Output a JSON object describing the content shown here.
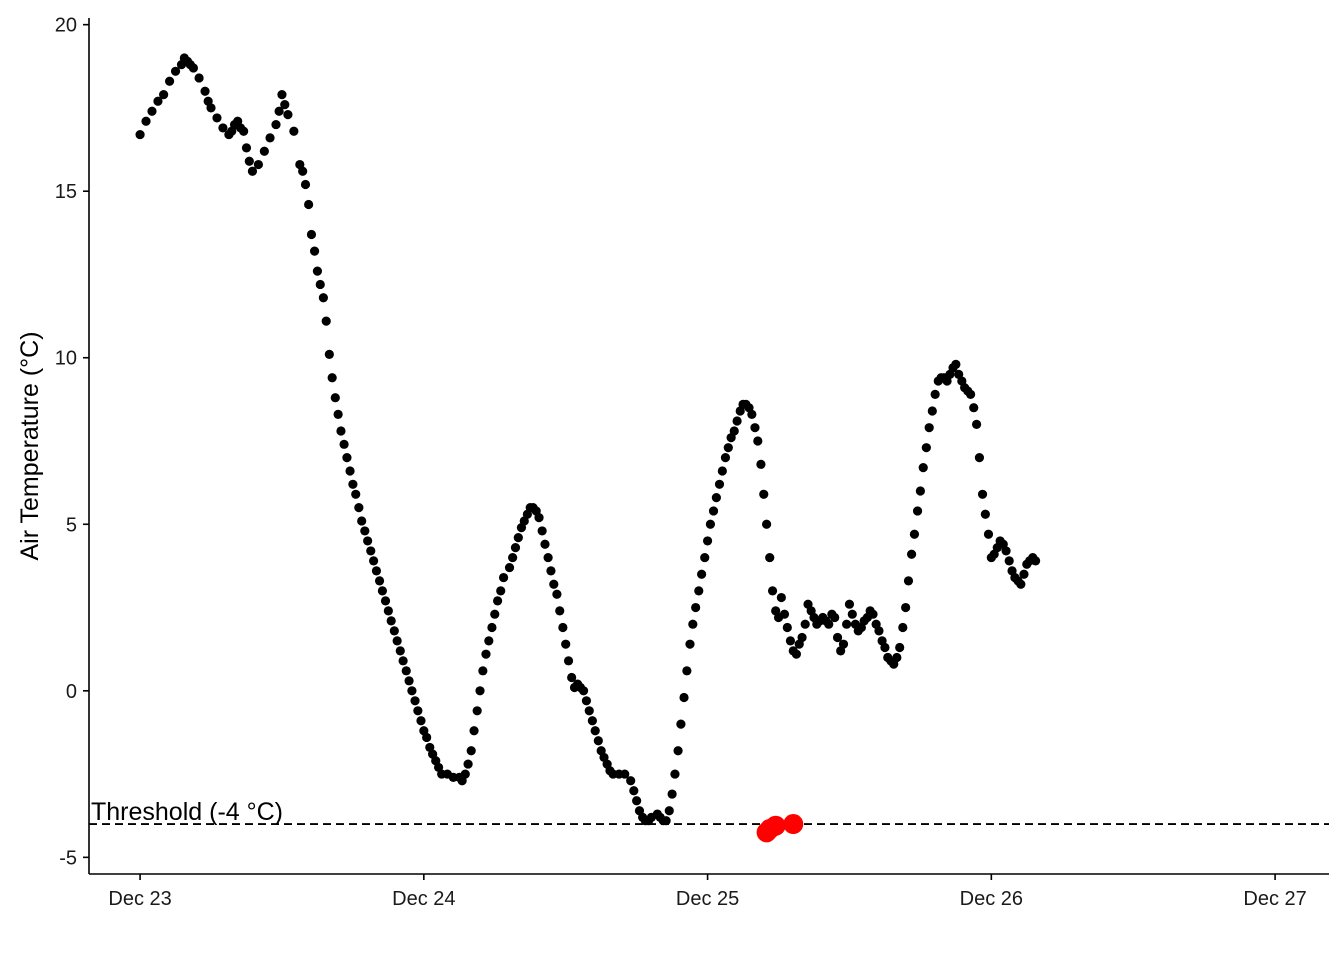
{
  "chart_data": {
    "type": "scatter",
    "title": "",
    "xlabel": "",
    "ylabel": "Air Temperature (°C)",
    "x_unit": "days since Dec 23 00:00",
    "xlim": [
      -0.18,
      4.19
    ],
    "ylim": [
      -5.5,
      20.2
    ],
    "x_ticks": [
      {
        "value": 0,
        "label": "Dec 23"
      },
      {
        "value": 1,
        "label": "Dec 24"
      },
      {
        "value": 2,
        "label": "Dec 25"
      },
      {
        "value": 3,
        "label": "Dec 26"
      },
      {
        "value": 4,
        "label": "Dec 27"
      }
    ],
    "y_ticks": [
      {
        "value": -5,
        "label": "-5"
      },
      {
        "value": 0,
        "label": "0"
      },
      {
        "value": 5,
        "label": "5"
      },
      {
        "value": 10,
        "label": "10"
      },
      {
        "value": 15,
        "label": "15"
      },
      {
        "value": 20,
        "label": "20"
      }
    ],
    "grid": false,
    "threshold": {
      "value": -4,
      "label": "Threshold (-4 °C)",
      "line_style": "dashed"
    },
    "colors": {
      "points": "#000000",
      "below_threshold": "#ff0000",
      "threshold_line": "#000000"
    },
    "series": [
      {
        "values": [
          [
            0.0,
            16.7
          ],
          [
            0.021,
            17.1
          ],
          [
            0.042,
            17.4
          ],
          [
            0.063,
            17.7
          ],
          [
            0.083,
            17.9
          ],
          [
            0.104,
            18.3
          ],
          [
            0.125,
            18.6
          ],
          [
            0.146,
            18.8
          ],
          [
            0.156,
            19.0
          ],
          [
            0.167,
            18.9
          ],
          [
            0.177,
            18.8
          ],
          [
            0.188,
            18.7
          ],
          [
            0.208,
            18.4
          ],
          [
            0.229,
            18.0
          ],
          [
            0.24,
            17.7
          ],
          [
            0.25,
            17.5
          ],
          [
            0.271,
            17.2
          ],
          [
            0.292,
            16.9
          ],
          [
            0.313,
            16.7
          ],
          [
            0.323,
            16.8
          ],
          [
            0.333,
            17.0
          ],
          [
            0.344,
            17.1
          ],
          [
            0.354,
            16.9
          ],
          [
            0.365,
            16.8
          ],
          [
            0.375,
            16.3
          ],
          [
            0.385,
            15.9
          ],
          [
            0.396,
            15.6
          ],
          [
            0.417,
            15.8
          ],
          [
            0.438,
            16.2
          ],
          [
            0.458,
            16.6
          ],
          [
            0.479,
            17.0
          ],
          [
            0.49,
            17.4
          ],
          [
            0.5,
            17.9
          ],
          [
            0.51,
            17.6
          ],
          [
            0.521,
            17.3
          ],
          [
            0.542,
            16.8
          ],
          [
            0.563,
            15.8
          ],
          [
            0.573,
            15.6
          ],
          [
            0.583,
            15.2
          ],
          [
            0.594,
            14.6
          ],
          [
            0.604,
            13.7
          ],
          [
            0.615,
            13.2
          ],
          [
            0.625,
            12.6
          ],
          [
            0.635,
            12.2
          ],
          [
            0.646,
            11.8
          ],
          [
            0.656,
            11.1
          ],
          [
            0.667,
            10.1
          ],
          [
            0.677,
            9.4
          ],
          [
            0.688,
            8.8
          ],
          [
            0.698,
            8.3
          ],
          [
            0.708,
            7.8
          ],
          [
            0.719,
            7.4
          ],
          [
            0.729,
            7.0
          ],
          [
            0.74,
            6.6
          ],
          [
            0.75,
            6.2
          ],
          [
            0.76,
            5.9
          ],
          [
            0.771,
            5.5
          ],
          [
            0.781,
            5.1
          ],
          [
            0.792,
            4.8
          ],
          [
            0.802,
            4.5
          ],
          [
            0.813,
            4.2
          ],
          [
            0.823,
            3.9
          ],
          [
            0.833,
            3.6
          ],
          [
            0.844,
            3.3
          ],
          [
            0.854,
            3.0
          ],
          [
            0.865,
            2.7
          ],
          [
            0.875,
            2.4
          ],
          [
            0.885,
            2.1
          ],
          [
            0.896,
            1.8
          ],
          [
            0.906,
            1.5
          ],
          [
            0.917,
            1.2
          ],
          [
            0.927,
            0.9
          ],
          [
            0.938,
            0.6
          ],
          [
            0.948,
            0.3
          ],
          [
            0.958,
            0.0
          ],
          [
            0.969,
            -0.3
          ],
          [
            0.979,
            -0.6
          ],
          [
            0.99,
            -0.9
          ],
          [
            1.0,
            -1.2
          ],
          [
            1.01,
            -1.4
          ],
          [
            1.021,
            -1.7
          ],
          [
            1.031,
            -1.9
          ],
          [
            1.042,
            -2.1
          ],
          [
            1.052,
            -2.3
          ],
          [
            1.063,
            -2.5
          ],
          [
            1.083,
            -2.5
          ],
          [
            1.104,
            -2.6
          ],
          [
            1.125,
            -2.6
          ],
          [
            1.135,
            -2.7
          ],
          [
            1.146,
            -2.5
          ],
          [
            1.156,
            -2.2
          ],
          [
            1.167,
            -1.8
          ],
          [
            1.177,
            -1.2
          ],
          [
            1.188,
            -0.6
          ],
          [
            1.198,
            0.0
          ],
          [
            1.208,
            0.6
          ],
          [
            1.219,
            1.1
          ],
          [
            1.229,
            1.5
          ],
          [
            1.24,
            1.9
          ],
          [
            1.25,
            2.3
          ],
          [
            1.26,
            2.7
          ],
          [
            1.271,
            3.0
          ],
          [
            1.281,
            3.4
          ],
          [
            1.302,
            3.7
          ],
          [
            1.313,
            4.0
          ],
          [
            1.323,
            4.3
          ],
          [
            1.333,
            4.6
          ],
          [
            1.344,
            4.9
          ],
          [
            1.354,
            5.1
          ],
          [
            1.365,
            5.3
          ],
          [
            1.375,
            5.5
          ],
          [
            1.385,
            5.5
          ],
          [
            1.396,
            5.4
          ],
          [
            1.406,
            5.2
          ],
          [
            1.417,
            4.8
          ],
          [
            1.427,
            4.4
          ],
          [
            1.438,
            4.0
          ],
          [
            1.448,
            3.6
          ],
          [
            1.458,
            3.2
          ],
          [
            1.469,
            2.9
          ],
          [
            1.479,
            2.4
          ],
          [
            1.49,
            1.9
          ],
          [
            1.5,
            1.4
          ],
          [
            1.51,
            0.9
          ],
          [
            1.521,
            0.4
          ],
          [
            1.531,
            0.1
          ],
          [
            1.542,
            0.2
          ],
          [
            1.552,
            0.1
          ],
          [
            1.563,
            0.0
          ],
          [
            1.573,
            -0.3
          ],
          [
            1.583,
            -0.6
          ],
          [
            1.594,
            -0.9
          ],
          [
            1.604,
            -1.2
          ],
          [
            1.615,
            -1.5
          ],
          [
            1.625,
            -1.8
          ],
          [
            1.635,
            -2.0
          ],
          [
            1.646,
            -2.2
          ],
          [
            1.656,
            -2.4
          ],
          [
            1.667,
            -2.5
          ],
          [
            1.688,
            -2.5
          ],
          [
            1.708,
            -2.5
          ],
          [
            1.729,
            -2.7
          ],
          [
            1.74,
            -3.0
          ],
          [
            1.75,
            -3.3
          ],
          [
            1.76,
            -3.6
          ],
          [
            1.771,
            -3.8
          ],
          [
            1.781,
            -3.9
          ],
          [
            1.792,
            -3.9
          ],
          [
            1.802,
            -3.8
          ],
          [
            1.823,
            -3.7
          ],
          [
            1.833,
            -3.8
          ],
          [
            1.844,
            -3.9
          ],
          [
            1.854,
            -3.9
          ],
          [
            1.865,
            -3.6
          ],
          [
            1.875,
            -3.1
          ],
          [
            1.885,
            -2.5
          ],
          [
            1.896,
            -1.8
          ],
          [
            1.906,
            -1.0
          ],
          [
            1.917,
            -0.2
          ],
          [
            1.927,
            0.6
          ],
          [
            1.938,
            1.4
          ],
          [
            1.948,
            2.0
          ],
          [
            1.958,
            2.5
          ],
          [
            1.969,
            3.0
          ],
          [
            1.979,
            3.5
          ],
          [
            1.99,
            4.0
          ],
          [
            2.0,
            4.5
          ],
          [
            2.01,
            5.0
          ],
          [
            2.021,
            5.4
          ],
          [
            2.031,
            5.8
          ],
          [
            2.042,
            6.2
          ],
          [
            2.052,
            6.6
          ],
          [
            2.063,
            7.0
          ],
          [
            2.073,
            7.3
          ],
          [
            2.083,
            7.6
          ],
          [
            2.094,
            7.8
          ],
          [
            2.104,
            8.1
          ],
          [
            2.115,
            8.4
          ],
          [
            2.125,
            8.6
          ],
          [
            2.135,
            8.6
          ],
          [
            2.146,
            8.5
          ],
          [
            2.156,
            8.3
          ],
          [
            2.167,
            7.9
          ],
          [
            2.177,
            7.5
          ],
          [
            2.188,
            6.8
          ],
          [
            2.198,
            5.9
          ],
          [
            2.208,
            5.0
          ],
          [
            2.219,
            4.0
          ],
          [
            2.229,
            3.0
          ],
          [
            2.24,
            2.4
          ],
          [
            2.25,
            2.2
          ],
          [
            2.26,
            2.8
          ],
          [
            2.271,
            2.3
          ],
          [
            2.281,
            1.9
          ],
          [
            2.292,
            1.5
          ],
          [
            2.302,
            1.2
          ],
          [
            2.313,
            1.1
          ],
          [
            2.323,
            1.4
          ],
          [
            2.333,
            1.6
          ],
          [
            2.344,
            2.0
          ],
          [
            2.354,
            2.6
          ],
          [
            2.365,
            2.4
          ],
          [
            2.375,
            2.2
          ],
          [
            2.385,
            2.0
          ],
          [
            2.396,
            2.1
          ],
          [
            2.406,
            2.2
          ],
          [
            2.417,
            2.1
          ],
          [
            2.427,
            2.0
          ],
          [
            2.438,
            2.3
          ],
          [
            2.448,
            2.2
          ],
          [
            2.458,
            1.6
          ],
          [
            2.469,
            1.2
          ],
          [
            2.479,
            1.4
          ],
          [
            2.49,
            2.0
          ],
          [
            2.5,
            2.6
          ],
          [
            2.51,
            2.3
          ],
          [
            2.521,
            2.0
          ],
          [
            2.531,
            1.8
          ],
          [
            2.542,
            1.9
          ],
          [
            2.552,
            2.1
          ],
          [
            2.563,
            2.2
          ],
          [
            2.573,
            2.4
          ],
          [
            2.583,
            2.3
          ],
          [
            2.594,
            2.0
          ],
          [
            2.604,
            1.8
          ],
          [
            2.615,
            1.5
          ],
          [
            2.625,
            1.3
          ],
          [
            2.635,
            1.0
          ],
          [
            2.646,
            0.9
          ],
          [
            2.656,
            0.8
          ],
          [
            2.667,
            1.0
          ],
          [
            2.677,
            1.3
          ],
          [
            2.688,
            1.9
          ],
          [
            2.698,
            2.5
          ],
          [
            2.708,
            3.3
          ],
          [
            2.719,
            4.1
          ],
          [
            2.729,
            4.7
          ],
          [
            2.74,
            5.4
          ],
          [
            2.75,
            6.0
          ],
          [
            2.76,
            6.7
          ],
          [
            2.771,
            7.3
          ],
          [
            2.781,
            7.9
          ],
          [
            2.792,
            8.4
          ],
          [
            2.802,
            8.9
          ],
          [
            2.813,
            9.3
          ],
          [
            2.823,
            9.4
          ],
          [
            2.833,
            9.4
          ],
          [
            2.844,
            9.3
          ],
          [
            2.854,
            9.5
          ],
          [
            2.865,
            9.7
          ],
          [
            2.875,
            9.8
          ],
          [
            2.885,
            9.5
          ],
          [
            2.896,
            9.3
          ],
          [
            2.906,
            9.1
          ],
          [
            2.917,
            9.0
          ],
          [
            2.927,
            8.9
          ],
          [
            2.938,
            8.5
          ],
          [
            2.948,
            8.0
          ],
          [
            2.958,
            7.0
          ],
          [
            2.969,
            5.9
          ],
          [
            2.979,
            5.3
          ],
          [
            2.99,
            4.7
          ],
          [
            3.0,
            4.0
          ],
          [
            3.01,
            4.1
          ],
          [
            3.021,
            4.3
          ],
          [
            3.031,
            4.5
          ],
          [
            3.042,
            4.4
          ],
          [
            3.052,
            4.2
          ],
          [
            3.063,
            3.9
          ],
          [
            3.073,
            3.6
          ],
          [
            3.083,
            3.4
          ],
          [
            3.094,
            3.3
          ],
          [
            3.104,
            3.2
          ],
          [
            3.115,
            3.5
          ],
          [
            3.125,
            3.8
          ],
          [
            3.135,
            3.9
          ],
          [
            3.146,
            4.0
          ],
          [
            3.156,
            3.9
          ]
        ]
      },
      {
        "name": "below threshold",
        "values": [
          [
            2.208,
            -4.25
          ],
          [
            2.219,
            -4.15
          ],
          [
            2.24,
            -4.05
          ],
          [
            2.302,
            -4.0
          ]
        ]
      }
    ]
  }
}
